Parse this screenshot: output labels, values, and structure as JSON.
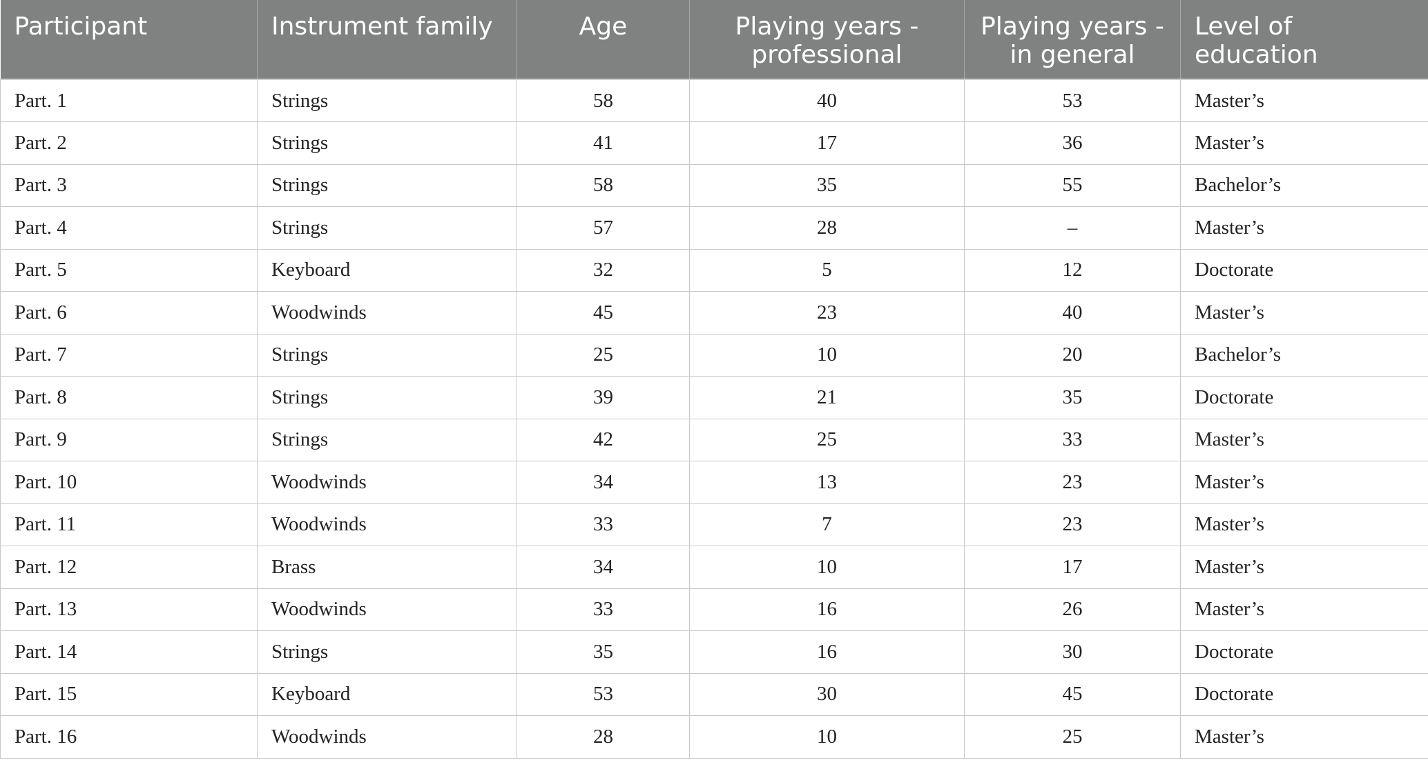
{
  "table": {
    "headers": [
      "Participant",
      "Instrument family",
      "Age",
      "Playing years - professional",
      "Playing years - in general",
      "Level of education"
    ],
    "rows": [
      [
        "Part. 1",
        "Strings",
        "58",
        "40",
        "53",
        "Master’s"
      ],
      [
        "Part. 2",
        "Strings",
        "41",
        "17",
        "36",
        "Master’s"
      ],
      [
        "Part. 3",
        "Strings",
        "58",
        "35",
        "55",
        "Bachelor’s"
      ],
      [
        "Part. 4",
        "Strings",
        "57",
        "28",
        "–",
        "Master’s"
      ],
      [
        "Part. 5",
        "Keyboard",
        "32",
        "5",
        "12",
        "Doctorate"
      ],
      [
        "Part. 6",
        "Woodwinds",
        "45",
        "23",
        "40",
        "Master’s"
      ],
      [
        "Part. 7",
        "Strings",
        "25",
        "10",
        "20",
        "Bachelor’s"
      ],
      [
        "Part. 8",
        "Strings",
        "39",
        "21",
        "35",
        "Doctorate"
      ],
      [
        "Part. 9",
        "Strings",
        "42",
        "25",
        "33",
        "Master’s"
      ],
      [
        "Part. 10",
        "Woodwinds",
        "34",
        "13",
        "23",
        "Master’s"
      ],
      [
        "Part. 11",
        "Woodwinds",
        "33",
        "7",
        "23",
        "Master’s"
      ],
      [
        "Part. 12",
        "Brass",
        "34",
        "10",
        "17",
        "Master’s"
      ],
      [
        "Part. 13",
        "Woodwinds",
        "33",
        "16",
        "26",
        "Master’s"
      ],
      [
        "Part. 14",
        "Strings",
        "35",
        "16",
        "30",
        "Doctorate"
      ],
      [
        "Part. 15",
        "Keyboard",
        "53",
        "30",
        "45",
        "Doctorate"
      ],
      [
        "Part. 16",
        "Woodwinds",
        "28",
        "10",
        "25",
        "Master’s"
      ]
    ]
  },
  "colors": {
    "header_bg": "#808181",
    "header_text": "#ffffff",
    "grid": "#c8c8c8",
    "body_text": "#222222"
  }
}
